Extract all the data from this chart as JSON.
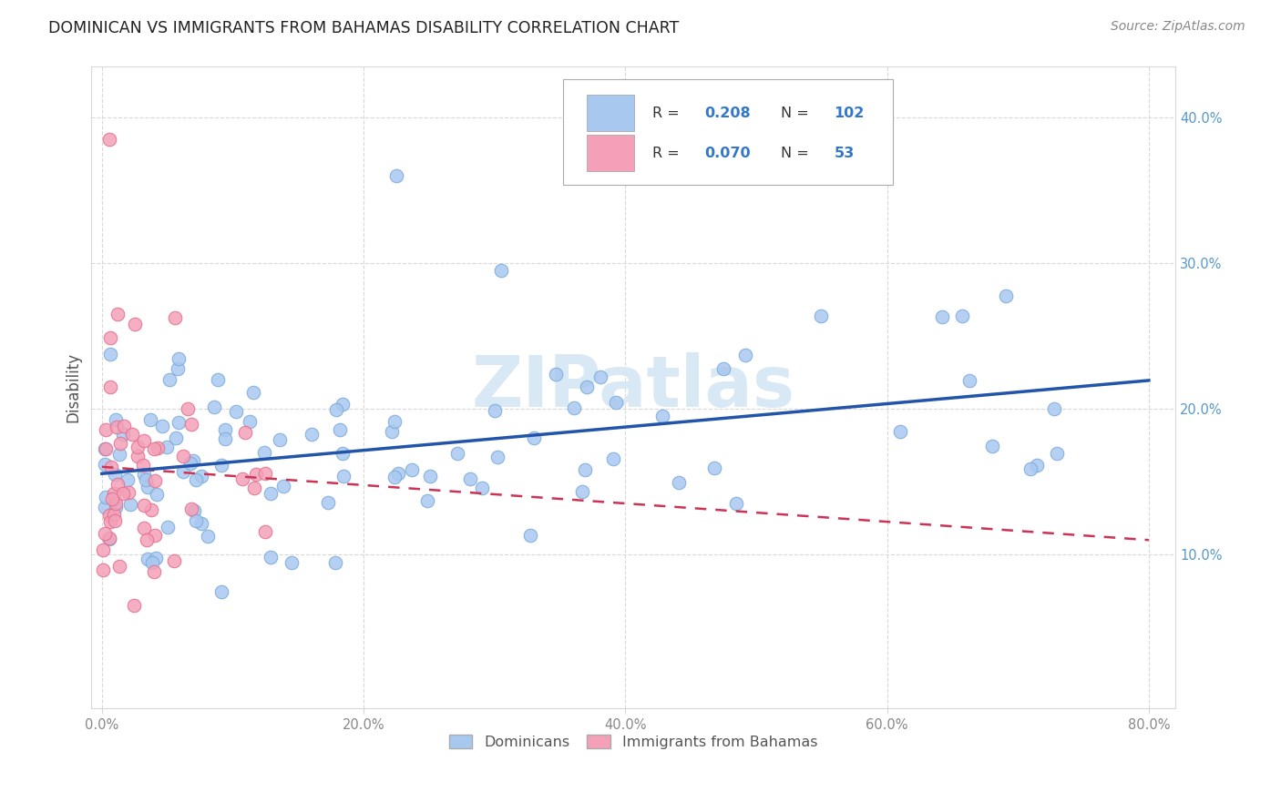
{
  "title": "DOMINICAN VS IMMIGRANTS FROM BAHAMAS DISABILITY CORRELATION CHART",
  "source": "Source: ZipAtlas.com",
  "ylabel": "Disability",
  "xlim": [
    -0.008,
    0.82
  ],
  "ylim": [
    -0.005,
    0.435
  ],
  "xticks": [
    0.0,
    0.2,
    0.4,
    0.6,
    0.8
  ],
  "xtick_labels": [
    "0.0%",
    "20.0%",
    "40.0%",
    "60.0%",
    "80.0%"
  ],
  "yticks_right": [
    0.1,
    0.2,
    0.3,
    0.4
  ],
  "ytick_labels_right": [
    "10.0%",
    "20.0%",
    "30.0%",
    "40.0%"
  ],
  "legend_labels": [
    "Dominicans",
    "Immigrants from Bahamas"
  ],
  "blue_color": "#a8c8f0",
  "pink_color": "#f4a0b8",
  "blue_edge_color": "#7aaad8",
  "pink_edge_color": "#e07090",
  "blue_line_color": "#2255aa",
  "pink_line_color": "#cc3355",
  "watermark": "ZIPatlas",
  "watermark_color": "#d8e8f4",
  "grid_color": "#d8d8d8",
  "title_color": "#222222",
  "source_color": "#888888",
  "axis_label_color": "#555555",
  "tick_label_color": "#888888",
  "right_tick_color": "#5599cc"
}
